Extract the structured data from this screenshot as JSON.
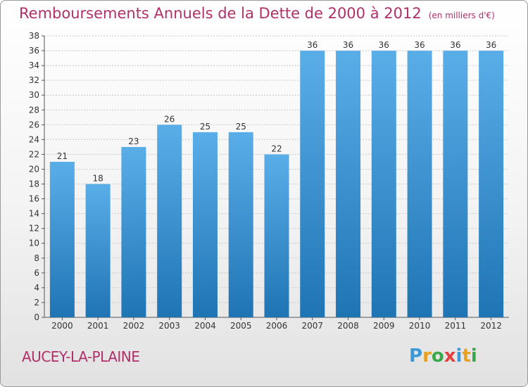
{
  "title": {
    "main": "Remboursements Annuels de la Dette de 2000 à 2012",
    "unit": "(en milliers d'€)"
  },
  "commune": "AUCEY-LA-PLAINE",
  "logo": {
    "letters": [
      "P",
      "r",
      "o",
      "x",
      "i",
      "t",
      "i"
    ],
    "colors": [
      "#3a9ad9",
      "#e8a020",
      "#3aa84a",
      "#e04040",
      "#3a9ad9",
      "#e8a020",
      "#3aa84a"
    ]
  },
  "colors": {
    "title": "#b0306a",
    "bar_top": "#5aaee8",
    "bar_bottom": "#1f74b4"
  },
  "chart_data": {
    "type": "bar",
    "categories": [
      "2000",
      "2001",
      "2002",
      "2003",
      "2004",
      "2005",
      "2006",
      "2007",
      "2008",
      "2009",
      "2010",
      "2011",
      "2012"
    ],
    "values": [
      21,
      18,
      23,
      26,
      25,
      25,
      22,
      36,
      36,
      36,
      36,
      36,
      36
    ],
    "ylim": [
      0,
      38
    ],
    "yticks": [
      0,
      2,
      4,
      6,
      8,
      10,
      12,
      14,
      16,
      18,
      20,
      22,
      24,
      26,
      28,
      30,
      32,
      34,
      36,
      38
    ],
    "grid": true,
    "legend": "none"
  }
}
